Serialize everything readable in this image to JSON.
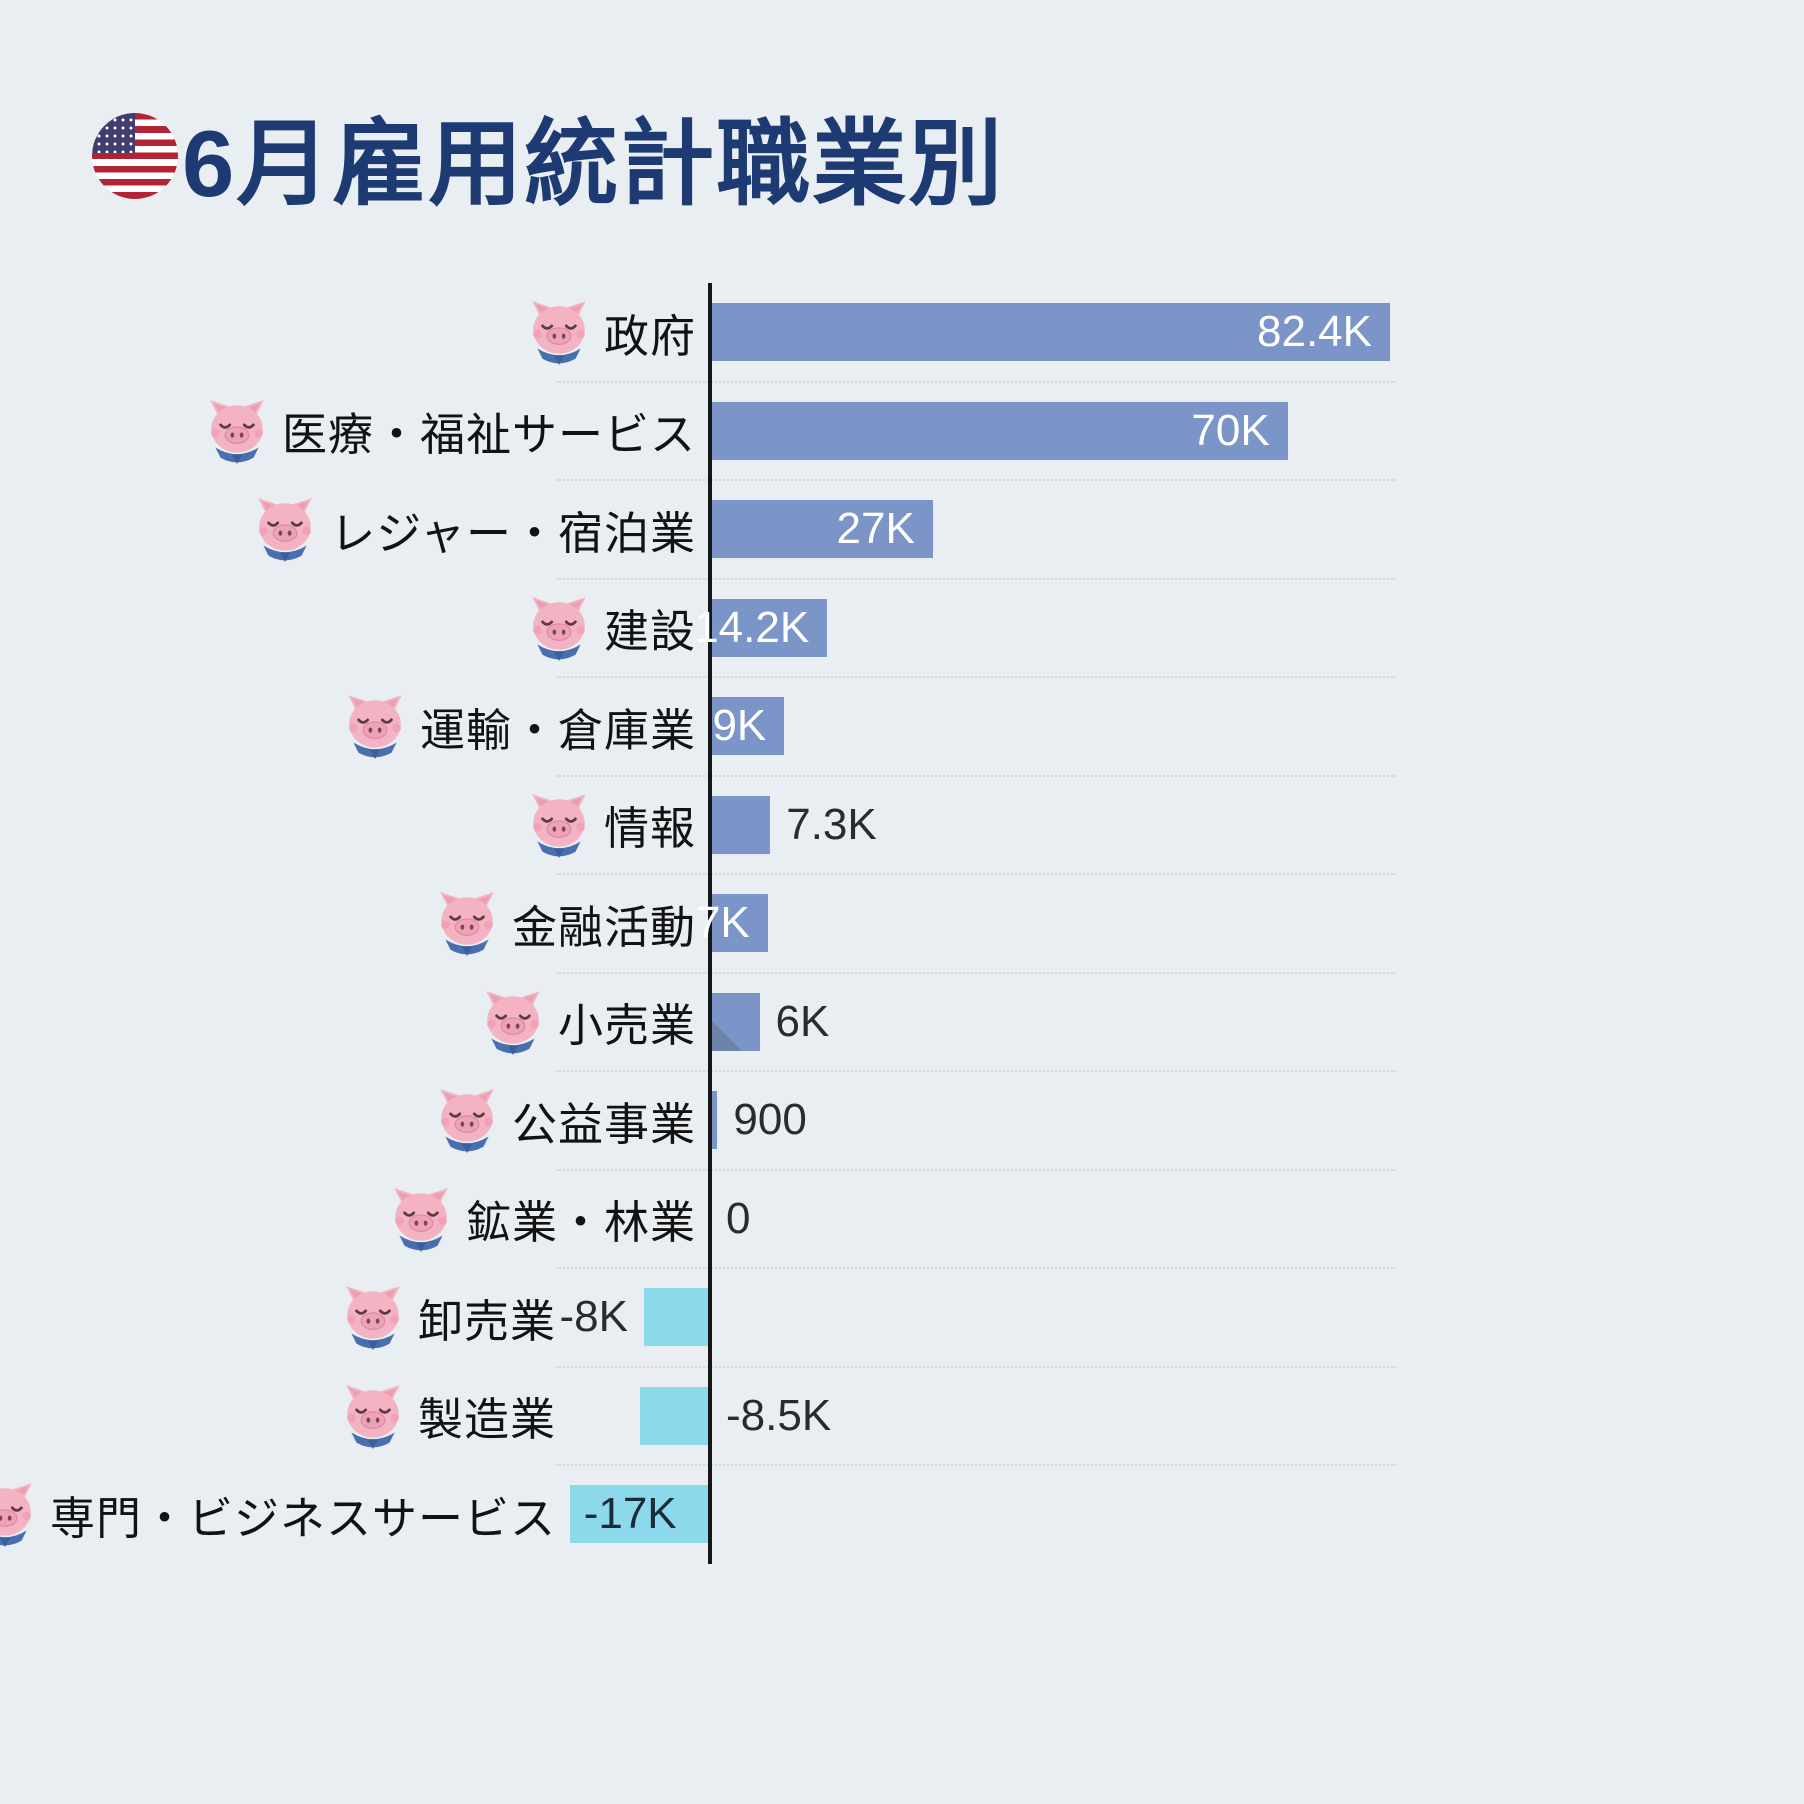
{
  "page": {
    "background": "#e9eef3"
  },
  "header": {
    "title": "6月雇用統計職業別",
    "title_color": "#1d3a72",
    "flag_icon": "us-flag-icon"
  },
  "chart_data": {
    "type": "bar",
    "orientation": "horizontal",
    "title": "6月雇用統計職業別",
    "xlabel": "",
    "ylabel": "",
    "xlim": [
      -17000,
      82400
    ],
    "grid": "dotted horizontal row separators",
    "legend": "none",
    "row_icon": "pig-face-icon",
    "categories": [
      "政府",
      "医療・福祉サービス",
      "レジャー・宿泊業",
      "建設",
      "運輸・倉庫業",
      "情報",
      "金融活動",
      "小売業",
      "公益事業",
      "鉱業・林業",
      "卸売業",
      "製造業",
      "専門・ビジネスサービス"
    ],
    "values": [
      82400,
      70000,
      27000,
      14200,
      9000,
      7300,
      7000,
      6000,
      900,
      0,
      -8000,
      -8500,
      -17000
    ],
    "value_labels": [
      "82.4K",
      "70K",
      "27K",
      "14.2K",
      "9K",
      "7.3K",
      "7K",
      "6K",
      "900",
      "0",
      "-8K",
      "-8.5K",
      "-17K"
    ],
    "label_placements": [
      "inside-right",
      "inside-right",
      "inside-right",
      "inside-right",
      "inside-right",
      "outside-right",
      "inside-right",
      "outside-right",
      "outside-right",
      "outside-right",
      "outside-left",
      "outside-axis-right",
      "inside-left"
    ],
    "decorations": {
      "corner_fold_category": "小売業"
    },
    "colors": {
      "positive": "#7b95c9",
      "negative": "#8bd9ea",
      "value_inside": "#ffffff",
      "value_inside_negative": "#1b2b38",
      "value_outside": "#2b2b2b",
      "fold": "#6b81a2",
      "gridline": "#d2d6db",
      "axis": "#161616"
    }
  }
}
